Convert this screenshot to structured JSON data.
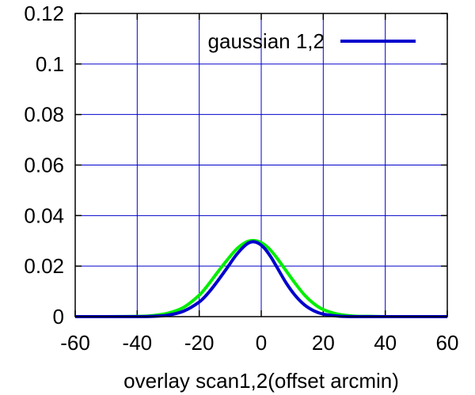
{
  "chart_data": {
    "type": "line",
    "xlabel": "overlay scan1,2(offset arcmin)",
    "ylabel": "",
    "title": "",
    "xlim": [
      -60,
      60
    ],
    "ylim": [
      0,
      0.12
    ],
    "x_ticks": [
      -60,
      -40,
      -20,
      0,
      20,
      40,
      60
    ],
    "x_tick_labels": [
      "-60",
      "-40",
      "-20",
      "0",
      "20",
      "40",
      "60"
    ],
    "y_ticks": [
      0,
      0.02,
      0.04,
      0.06,
      0.08,
      0.1,
      0.12
    ],
    "y_tick_labels": [
      "0",
      "0.02",
      "0.04",
      "0.06",
      "0.08",
      "0.1",
      "0.12"
    ],
    "grid": true,
    "legend_position": "top-right",
    "series": [
      {
        "name": "",
        "color": "#00ee00",
        "x": [
          -60,
          -50,
          -40,
          -35,
          -30,
          -25,
          -20,
          -17,
          -14,
          -11,
          -8,
          -5,
          -3,
          -1,
          1,
          3,
          5,
          8,
          11,
          14,
          17,
          20,
          25,
          30,
          35,
          40,
          50,
          60
        ],
        "y": [
          0,
          0,
          0.0001,
          0.0004,
          0.0014,
          0.0037,
          0.0085,
          0.0128,
          0.0177,
          0.0224,
          0.0267,
          0.0294,
          0.0301,
          0.0298,
          0.0285,
          0.0263,
          0.0233,
          0.0182,
          0.0131,
          0.0085,
          0.0051,
          0.0028,
          0.0009,
          0.0002,
          0.0001,
          0,
          0,
          0
        ]
      },
      {
        "name": "gaussian 1,2",
        "color": "#0000cc",
        "x": [
          -60,
          -50,
          -40,
          -35,
          -30,
          -25,
          -20,
          -17,
          -14,
          -11,
          -8,
          -5,
          -3,
          -1,
          1,
          3,
          5,
          8,
          11,
          14,
          17,
          20,
          25,
          30,
          35,
          40,
          50,
          60
        ],
        "y": [
          0,
          0,
          0,
          0.0001,
          0.0006,
          0.0022,
          0.0058,
          0.0095,
          0.0142,
          0.0193,
          0.0245,
          0.0284,
          0.0296,
          0.0291,
          0.0271,
          0.0238,
          0.0197,
          0.0134,
          0.0083,
          0.0046,
          0.0023,
          0.001,
          0.0002,
          0,
          0,
          0,
          0,
          0
        ]
      }
    ]
  }
}
